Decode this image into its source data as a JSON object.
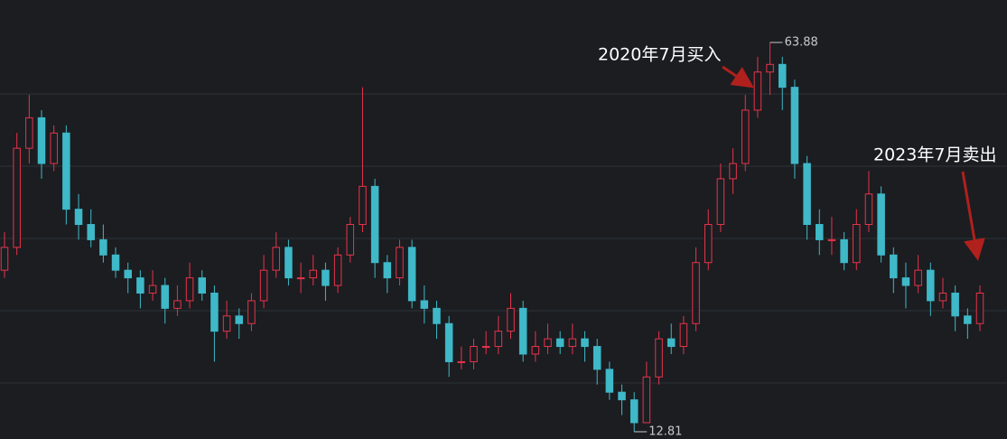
{
  "chart_data": {
    "type": "candlestick",
    "up_color": "#e8334a",
    "down_color": "#3fb8c8",
    "ylim": [
      11.86,
      69.45
    ],
    "candles": [
      [
        34,
        39,
        33,
        37
      ],
      [
        37,
        52,
        36,
        50
      ],
      [
        50,
        57,
        48,
        54
      ],
      [
        54,
        55,
        46,
        48
      ],
      [
        48,
        53,
        47,
        52
      ],
      [
        52,
        53,
        40,
        42
      ],
      [
        42,
        44,
        38,
        40
      ],
      [
        40,
        42,
        37,
        38
      ],
      [
        38,
        40,
        35,
        36
      ],
      [
        36,
        37,
        33,
        34
      ],
      [
        34,
        35,
        31,
        33
      ],
      [
        33,
        34,
        29,
        31
      ],
      [
        31,
        34,
        30,
        32
      ],
      [
        32,
        33,
        27,
        29
      ],
      [
        29,
        32,
        28,
        30
      ],
      [
        30,
        35,
        29,
        33
      ],
      [
        33,
        34,
        30,
        31
      ],
      [
        31,
        32,
        22,
        26
      ],
      [
        26,
        30,
        25,
        28
      ],
      [
        28,
        29,
        25,
        27
      ],
      [
        27,
        31,
        26,
        30
      ],
      [
        30,
        36,
        29,
        34
      ],
      [
        34,
        39,
        33,
        37
      ],
      [
        37,
        38,
        32,
        33
      ],
      [
        33,
        35,
        31,
        33
      ],
      [
        33,
        36,
        32,
        34
      ],
      [
        34,
        35,
        30,
        32
      ],
      [
        32,
        37,
        31,
        36
      ],
      [
        36,
        41,
        35,
        40
      ],
      [
        40,
        58,
        39,
        45
      ],
      [
        45,
        46,
        33,
        35
      ],
      [
        35,
        36,
        31,
        33
      ],
      [
        33,
        38,
        32,
        37
      ],
      [
        37,
        38,
        29,
        30
      ],
      [
        30,
        32,
        27,
        29
      ],
      [
        29,
        30,
        25,
        27
      ],
      [
        27,
        28,
        20,
        22
      ],
      [
        22,
        24,
        21,
        22
      ],
      [
        22,
        25,
        21,
        24
      ],
      [
        24,
        26,
        23,
        24
      ],
      [
        24,
        28,
        23,
        26
      ],
      [
        26,
        31,
        25,
        29
      ],
      [
        29,
        30,
        22,
        23
      ],
      [
        23,
        26,
        22,
        24
      ],
      [
        24,
        27,
        23,
        25
      ],
      [
        25,
        26,
        23,
        24
      ],
      [
        24,
        27,
        23,
        25
      ],
      [
        25,
        26,
        22,
        24
      ],
      [
        24,
        25,
        19,
        21
      ],
      [
        21,
        22,
        17,
        18
      ],
      [
        18,
        19,
        15,
        17
      ],
      [
        17,
        18,
        12.81,
        14
      ],
      [
        14,
        22,
        14,
        20
      ],
      [
        20,
        26,
        19,
        25
      ],
      [
        25,
        27,
        23,
        24
      ],
      [
        24,
        28,
        23,
        27
      ],
      [
        27,
        37,
        26,
        35
      ],
      [
        35,
        42,
        34,
        40
      ],
      [
        40,
        48,
        39,
        46
      ],
      [
        46,
        50,
        44,
        48
      ],
      [
        48,
        57,
        47,
        55
      ],
      [
        55,
        62,
        54,
        60
      ],
      [
        60,
        63.88,
        57,
        61
      ],
      [
        61,
        62,
        55,
        58
      ],
      [
        58,
        59,
        46,
        48
      ],
      [
        48,
        49,
        38,
        40
      ],
      [
        40,
        42,
        36,
        38
      ],
      [
        38,
        41,
        36,
        38
      ],
      [
        38,
        39,
        34,
        35
      ],
      [
        35,
        42,
        34,
        40
      ],
      [
        40,
        47,
        39,
        44
      ],
      [
        44,
        45,
        35,
        36
      ],
      [
        36,
        37,
        31,
        33
      ],
      [
        33,
        35,
        29,
        32
      ],
      [
        32,
        36,
        31,
        34
      ],
      [
        34,
        35,
        28,
        30
      ],
      [
        30,
        33,
        29,
        31
      ],
      [
        31,
        32,
        26,
        28
      ],
      [
        28,
        29,
        25,
        27
      ],
      [
        27,
        32,
        26,
        31
      ]
    ],
    "annotations": [
      "2020年7月买入",
      "2023年7月卖出"
    ]
  }
}
